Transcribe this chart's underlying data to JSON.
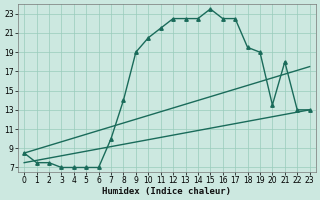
{
  "title": "",
  "xlabel": "Humidex (Indice chaleur)",
  "bg_color": "#cce8e0",
  "line_color": "#1a6b5a",
  "grid_color": "#99ccbb",
  "xlim": [
    -0.5,
    23.5
  ],
  "ylim": [
    6.5,
    24.0
  ],
  "xticks": [
    0,
    1,
    2,
    3,
    4,
    5,
    6,
    7,
    8,
    9,
    10,
    11,
    12,
    13,
    14,
    15,
    16,
    17,
    18,
    19,
    20,
    21,
    22,
    23
  ],
  "yticks": [
    7,
    9,
    11,
    13,
    15,
    17,
    19,
    21,
    23
  ],
  "line1_x": [
    0,
    1,
    2,
    3,
    4,
    5,
    6,
    7,
    8,
    9,
    10,
    11,
    12,
    13,
    14,
    15,
    16,
    17,
    18,
    19,
    20,
    21,
    22,
    23
  ],
  "line1_y": [
    8.5,
    7.5,
    7.5,
    7.0,
    7.0,
    7.0,
    7.0,
    10.0,
    14.0,
    19.0,
    20.5,
    21.5,
    22.5,
    22.5,
    22.5,
    23.5,
    22.5,
    22.5,
    19.5,
    19.0,
    13.5,
    18.0,
    13.0,
    13.0
  ],
  "line2_x": [
    0,
    23
  ],
  "line2_y": [
    8.5,
    17.5
  ],
  "line3_x": [
    0,
    23
  ],
  "line3_y": [
    7.5,
    13.0
  ],
  "markersize": 2.5,
  "linewidth": 1.0
}
